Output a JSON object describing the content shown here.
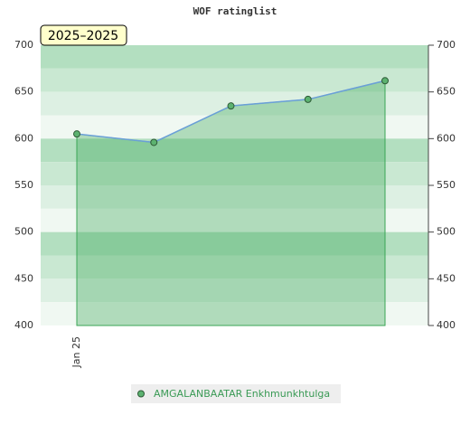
{
  "chart_data": {
    "type": "line",
    "title": "WOF ratinglist",
    "badge": "2025–2025",
    "categories": [
      "Jan 25",
      null,
      null,
      null,
      null
    ],
    "series": [
      {
        "name": "AMGALANBAATAR Enkhmunkhtulga",
        "color": "#5cb270",
        "line_color": "#6a9fd8",
        "values": [
          605,
          596,
          635,
          642,
          662
        ]
      }
    ],
    "ylim": [
      400,
      700
    ],
    "yticks": [
      400,
      450,
      500,
      550,
      600,
      650,
      700
    ],
    "y2lim": [
      400,
      700
    ],
    "y2ticks": [
      400,
      450,
      500,
      550,
      600,
      650,
      700
    ],
    "area": true
  }
}
